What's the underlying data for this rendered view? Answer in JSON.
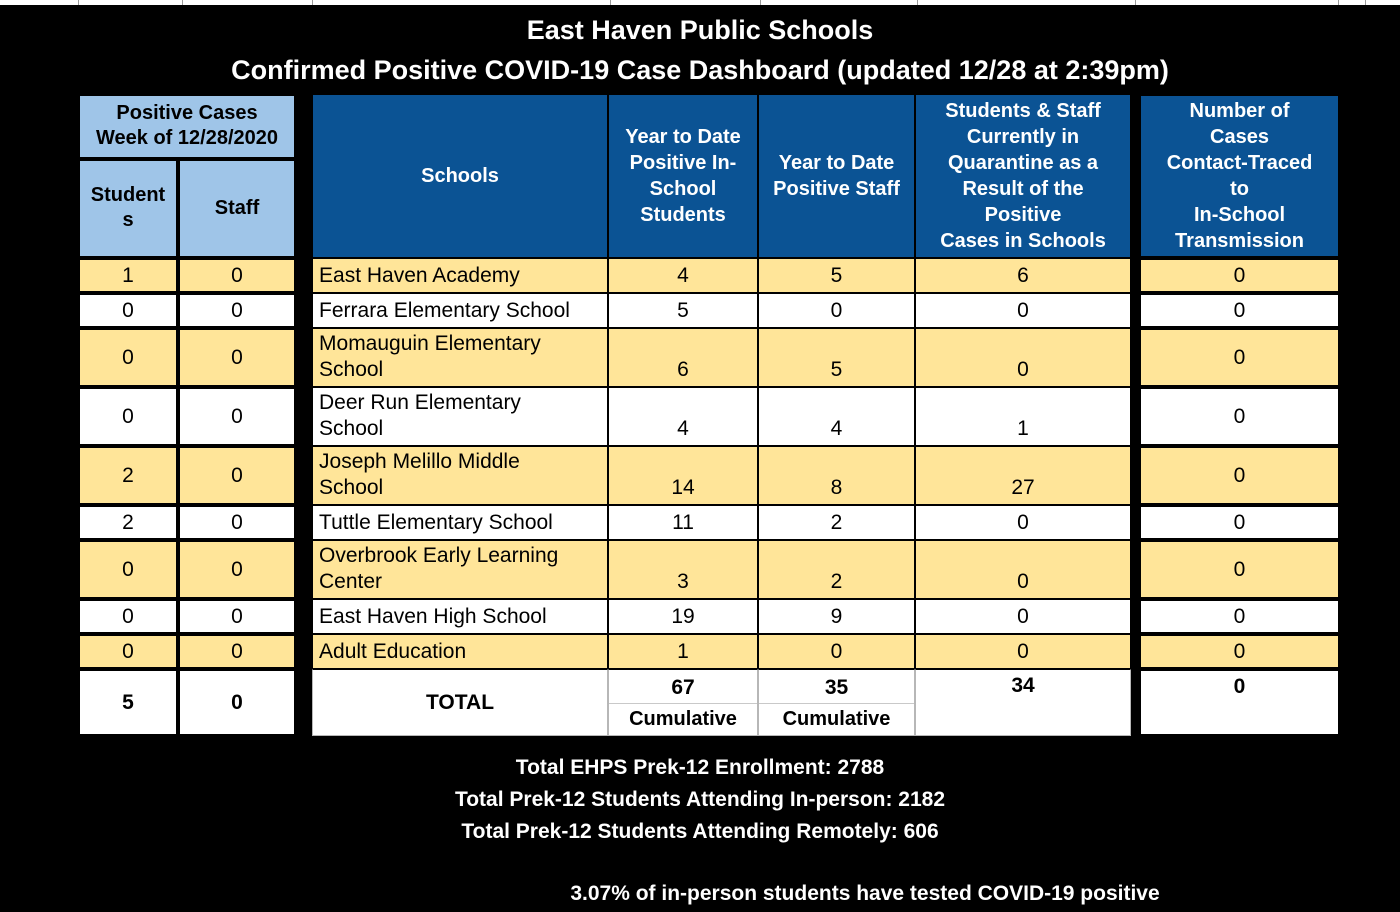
{
  "title": {
    "line1": "East Haven Public Schools",
    "line2": "Confirmed Positive COVID-19 Case Dashboard (updated 12/28 at 2:39pm)"
  },
  "table": {
    "header": {
      "week_title": "Positive Cases\nWeek of 12/28/2020",
      "week_students": "Students",
      "week_staff": "Staff",
      "schools": "Schools",
      "ytd_students": "Year to Date\nPositive In-\nSchool\nStudents",
      "ytd_staff": "Year to Date\nPositive Staff",
      "quarantine": "Students & Staff\nCurrently in\nQuarantine as a\nResult of the\nPositive\nCases in Schools",
      "contact_traced": "Number of\nCases\nContact-Traced\nto\nIn-School\nTransmission"
    },
    "rows": [
      {
        "school": "East Haven Academy",
        "week_students": "1",
        "week_staff": "0",
        "ytd_students": "4",
        "ytd_staff": "5",
        "quarantine": "6",
        "contact_traced": "0",
        "shaded": true
      },
      {
        "school": "Ferrara Elementary School",
        "week_students": "0",
        "week_staff": "0",
        "ytd_students": "5",
        "ytd_staff": "0",
        "quarantine": "0",
        "contact_traced": "0",
        "shaded": false
      },
      {
        "school": "Momauguin Elementary\nSchool",
        "week_students": "0",
        "week_staff": "0",
        "ytd_students": "6",
        "ytd_staff": "5",
        "quarantine": "0",
        "contact_traced": "0",
        "shaded": true
      },
      {
        "school": "Deer Run Elementary\nSchool",
        "week_students": "0",
        "week_staff": "0",
        "ytd_students": "4",
        "ytd_staff": "4",
        "quarantine": "1",
        "contact_traced": "0",
        "shaded": false
      },
      {
        "school": "Joseph Melillo Middle\nSchool",
        "week_students": "2",
        "week_staff": "0",
        "ytd_students": "14",
        "ytd_staff": "8",
        "quarantine": "27",
        "contact_traced": "0",
        "shaded": true
      },
      {
        "school": "Tuttle Elementary School",
        "week_students": "2",
        "week_staff": "0",
        "ytd_students": "11",
        "ytd_staff": "2",
        "quarantine": "0",
        "contact_traced": "0",
        "shaded": false
      },
      {
        "school": "Overbrook Early Learning\nCenter",
        "week_students": "0",
        "week_staff": "0",
        "ytd_students": "3",
        "ytd_staff": "2",
        "quarantine": "0",
        "contact_traced": "0",
        "shaded": true
      },
      {
        "school": "East Haven High School",
        "week_students": "0",
        "week_staff": "0",
        "ytd_students": "19",
        "ytd_staff": "9",
        "quarantine": "0",
        "contact_traced": "0",
        "shaded": false
      },
      {
        "school": "Adult Education",
        "week_students": "0",
        "week_staff": "0",
        "ytd_students": "1",
        "ytd_staff": "0",
        "quarantine": "0",
        "contact_traced": "0",
        "shaded": true
      }
    ],
    "total_row": {
      "week_students": "5",
      "week_staff": "0",
      "label": "TOTAL",
      "ytd_students": "67",
      "ytd_students_note": "Cumulative",
      "ytd_staff": "35",
      "ytd_staff_note": "Cumulative",
      "quarantine": "34",
      "contact_traced": "0"
    }
  },
  "footer": {
    "enrollment": "Total EHPS Prek-12 Enrollment: 2788",
    "in_person": "Total Prek-12 Students Attending In-person: 2182",
    "remote": "Total Prek-12 Students Attending Remotely: 606",
    "positivity": "3.07% of in-person students have tested COVID-19 positive"
  },
  "colors": {
    "page_bg": "#000000",
    "header_dark_blue": "#0B5394",
    "header_light_blue": "#9FC5E8",
    "row_yellow": "#FFE599",
    "row_white": "#FFFFFF",
    "header_text": "#FFFFFF",
    "cell_text": "#000000",
    "total_divider_gray": "#C9C9C9"
  }
}
